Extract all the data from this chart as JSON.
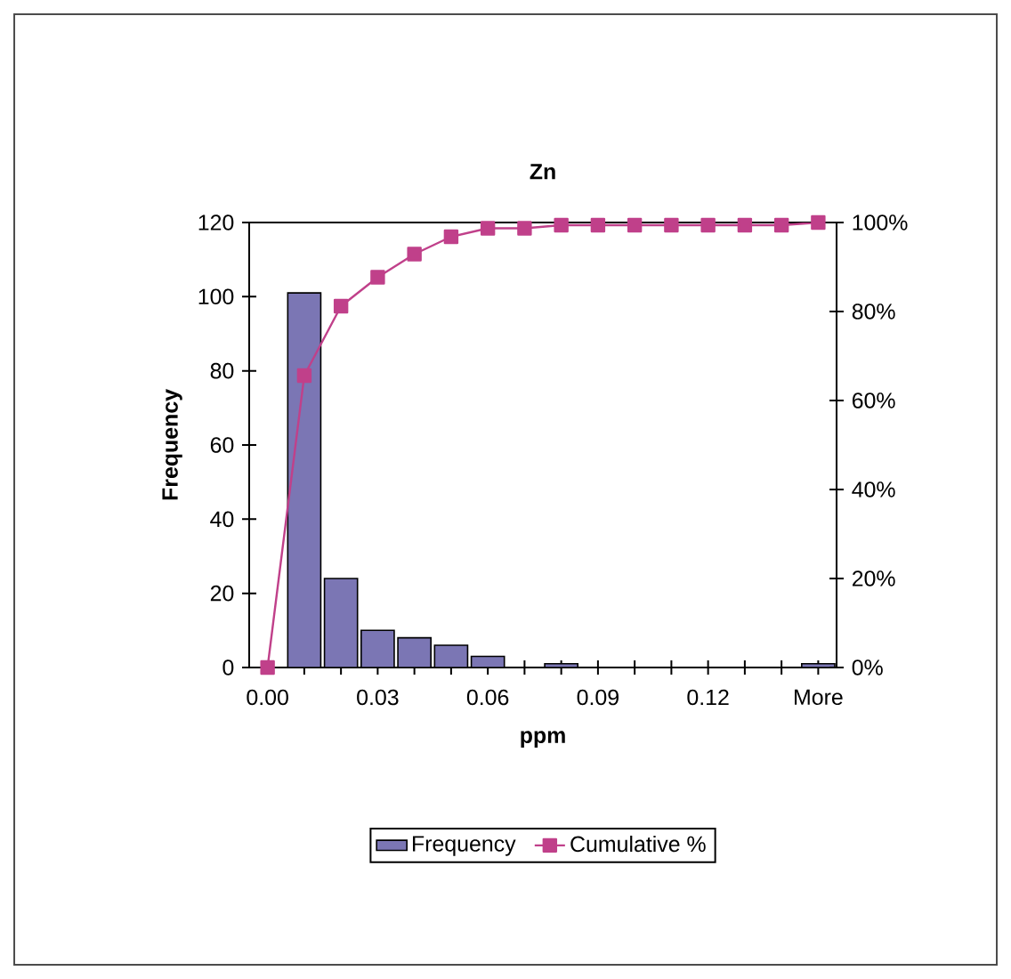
{
  "chart_data": {
    "type": "bar",
    "title": "Zn",
    "xlabel": "ppm",
    "ylabel": "Frequency",
    "categories": [
      "0.00",
      null,
      null,
      "0.03",
      null,
      null,
      "0.06",
      null,
      null,
      "0.09",
      null,
      null,
      "0.12",
      null,
      null,
      "More"
    ],
    "series": [
      {
        "name": "Frequency",
        "color": "#7b76b4",
        "values": [
          0,
          101,
          24,
          10,
          8,
          6,
          3,
          0,
          1,
          0,
          0,
          0,
          0,
          0,
          0,
          1
        ]
      },
      {
        "name": "Cumulative %",
        "type": "line",
        "axis": "y2",
        "color": "#c0408a",
        "marker": "square",
        "values": [
          0,
          65.6,
          81.2,
          87.7,
          92.9,
          96.8,
          98.7,
          98.7,
          99.4,
          99.4,
          99.4,
          99.4,
          99.4,
          99.4,
          99.4,
          100
        ]
      }
    ],
    "ylim": [
      0,
      120
    ],
    "yticks": [
      0,
      20,
      40,
      60,
      80,
      100,
      120
    ],
    "y2lim": [
      0,
      100
    ],
    "y2ticks": [
      {
        "value": 0,
        "label": "0%"
      },
      {
        "value": 20,
        "label": "20%"
      },
      {
        "value": 40,
        "label": "40%"
      },
      {
        "value": 60,
        "label": "60%"
      },
      {
        "value": 80,
        "label": "80%"
      },
      {
        "value": 100,
        "label": "100%"
      }
    ],
    "legend": "bottom",
    "grid": false
  }
}
